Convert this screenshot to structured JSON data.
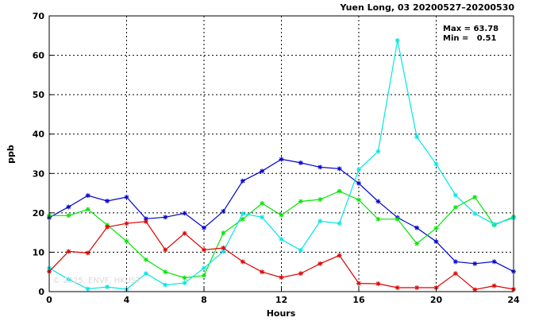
{
  "chart_data": {
    "type": "line",
    "title": "Yuen Long, 03 20200527–20200530",
    "xlabel": "Hours",
    "ylabel": "ppb",
    "xlim": [
      0,
      24
    ],
    "ylim": [
      0,
      70
    ],
    "xticks": [
      0,
      4,
      8,
      12,
      16,
      20,
      24
    ],
    "yticks": [
      0,
      10,
      20,
      30,
      40,
      50,
      60,
      70
    ],
    "grid": true,
    "stats": {
      "max_label": "Max = 63.78",
      "min_label": "Min =   0.51"
    },
    "watermark": "© 2025, ENVF, HKUST",
    "series": [
      {
        "color": "#0000cc",
        "x": [
          0,
          1,
          2,
          3,
          4,
          5,
          6,
          7,
          8,
          9,
          10,
          11,
          12,
          13,
          14,
          15,
          16,
          17,
          18,
          19,
          20,
          21,
          22,
          23,
          24
        ],
        "values": [
          18.8,
          21.5,
          24.4,
          23.0,
          24.0,
          18.5,
          18.9,
          19.9,
          16.2,
          20.4,
          28.1,
          30.6,
          33.6,
          32.7,
          31.6,
          31.2,
          27.5,
          22.9,
          18.8,
          16.2,
          12.7,
          7.6,
          7.1,
          7.6,
          5.1
        ]
      },
      {
        "color": "#00e600",
        "x": [
          0,
          1,
          2,
          3,
          4,
          5,
          6,
          7,
          8,
          9,
          10,
          11,
          12,
          13,
          14,
          15,
          16,
          17,
          18,
          19,
          20,
          21,
          22,
          23,
          24
        ],
        "values": [
          19.3,
          19.3,
          20.9,
          16.9,
          12.8,
          8.1,
          5.0,
          3.5,
          4.1,
          14.9,
          18.4,
          22.4,
          19.4,
          22.9,
          23.4,
          25.5,
          23.3,
          18.4,
          18.4,
          12.2,
          16.1,
          21.4,
          24.0,
          16.9,
          19.0
        ]
      },
      {
        "color": "#00e5e5",
        "x": [
          0,
          1,
          2,
          3,
          4,
          5,
          6,
          7,
          8,
          9,
          10,
          11,
          12,
          13,
          14,
          15,
          16,
          17,
          18,
          19,
          20,
          21,
          22,
          23,
          24
        ],
        "values": [
          6.0,
          3.1,
          0.7,
          1.2,
          0.6,
          4.6,
          1.7,
          2.2,
          6.0,
          10.2,
          19.8,
          18.9,
          13.3,
          10.5,
          17.9,
          17.3,
          31.0,
          35.6,
          63.78,
          39.3,
          32.4,
          24.5,
          19.8,
          17.1,
          18.7
        ]
      },
      {
        "color": "#dd0000",
        "x": [
          0,
          1,
          2,
          3,
          4,
          5,
          6,
          7,
          8,
          9,
          10,
          11,
          12,
          13,
          14,
          15,
          16,
          17,
          18,
          19,
          20,
          21,
          22,
          23,
          24
        ],
        "values": [
          5.1,
          10.2,
          9.8,
          16.4,
          17.3,
          17.8,
          10.6,
          14.8,
          10.6,
          11.1,
          7.6,
          5.0,
          3.6,
          4.6,
          7.1,
          9.2,
          2.1,
          2.0,
          1.0,
          1.0,
          1.0,
          4.6,
          0.51,
          1.5,
          0.6
        ]
      }
    ]
  }
}
